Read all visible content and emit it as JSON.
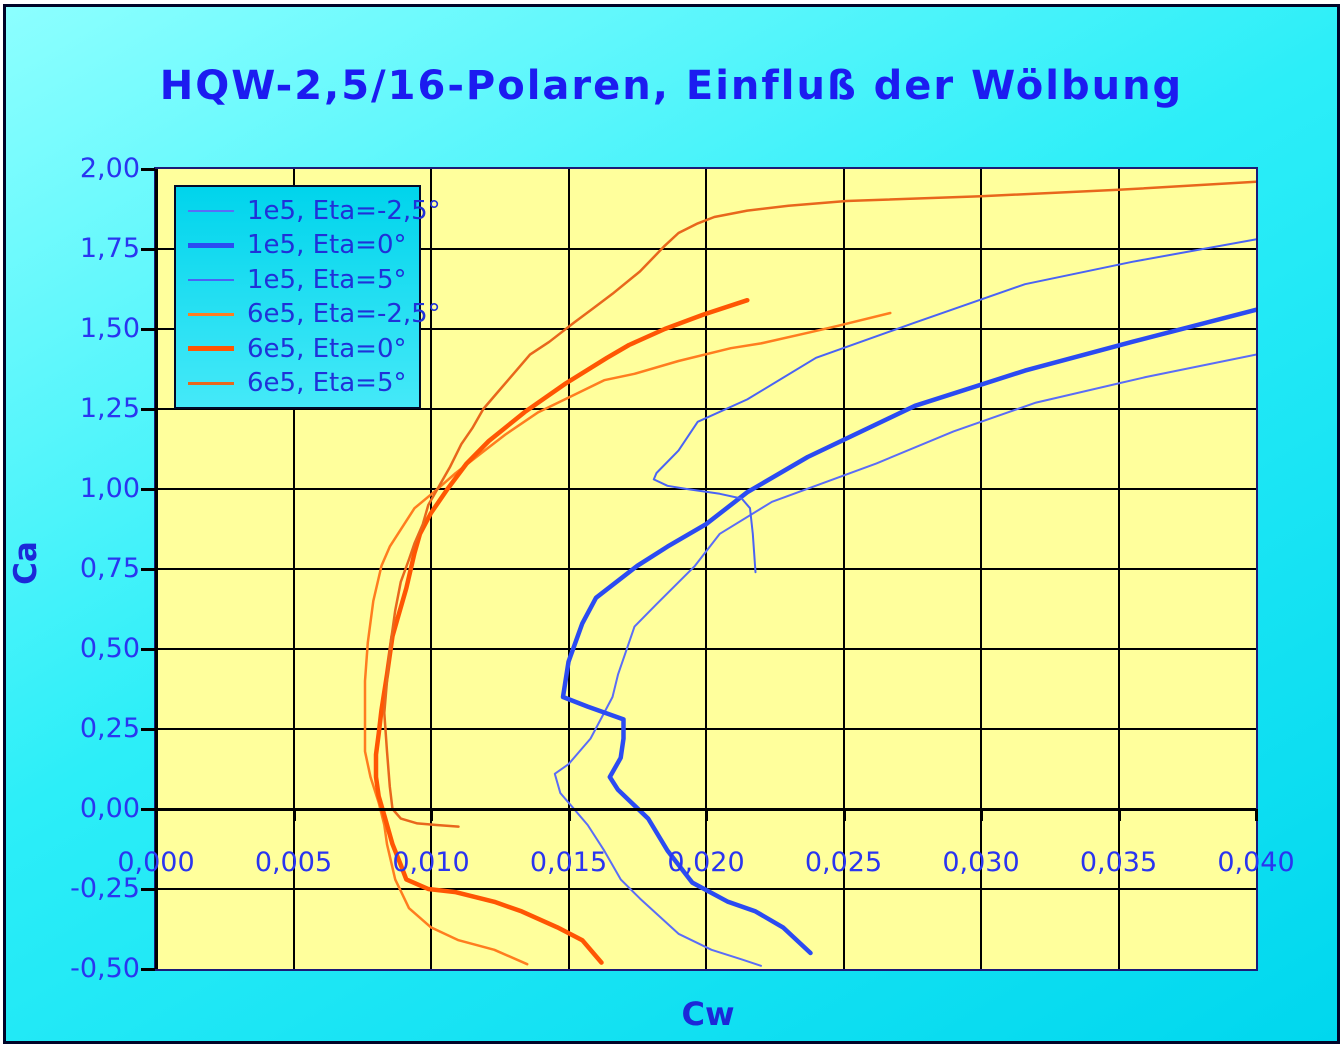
{
  "title": "HQW-2,5/16-Polaren, Einfluß der Wölbung",
  "chart_data": {
    "type": "line",
    "title": "HQW-2,5/16-Polaren, Einfluß der Wölbung",
    "xlabel": "Cw",
    "ylabel": "Ca",
    "xlim": [
      0.0,
      0.04
    ],
    "ylim": [
      -0.5,
      2.0
    ],
    "grid": true,
    "legend_position": "top-left",
    "plot_bg_color": "#ffff9c",
    "x_ticks": [
      {
        "value": 0.0,
        "label": "0,000"
      },
      {
        "value": 0.005,
        "label": "0,005"
      },
      {
        "value": 0.01,
        "label": "0,010"
      },
      {
        "value": 0.015,
        "label": "0,015"
      },
      {
        "value": 0.02,
        "label": "0,020"
      },
      {
        "value": 0.025,
        "label": "0,025"
      },
      {
        "value": 0.03,
        "label": "0,030"
      },
      {
        "value": 0.035,
        "label": "0,035"
      },
      {
        "value": 0.04,
        "label": "0,040"
      }
    ],
    "y_ticks": [
      {
        "value": 2.0,
        "label": "2,00"
      },
      {
        "value": 1.75,
        "label": "1,75"
      },
      {
        "value": 1.5,
        "label": "1,50"
      },
      {
        "value": 1.25,
        "label": "1,25"
      },
      {
        "value": 1.0,
        "label": "1,00"
      },
      {
        "value": 0.75,
        "label": "0,75"
      },
      {
        "value": 0.5,
        "label": "0,50"
      },
      {
        "value": 0.25,
        "label": "0,25"
      },
      {
        "value": 0.0,
        "label": "0,00"
      },
      {
        "value": -0.25,
        "label": "-0,25"
      },
      {
        "value": -0.5,
        "label": "-0,50"
      }
    ],
    "series": [
      {
        "name": "1e5, Eta=-2,5°",
        "color": "#5a6cf8",
        "width": 2,
        "points": [
          [
            0.04,
            1.42
          ],
          [
            0.036,
            1.35
          ],
          [
            0.032,
            1.27
          ],
          [
            0.029,
            1.18
          ],
          [
            0.0262,
            1.08
          ],
          [
            0.0224,
            0.96
          ],
          [
            0.0205,
            0.86
          ],
          [
            0.0196,
            0.76
          ],
          [
            0.0182,
            0.64
          ],
          [
            0.0174,
            0.57
          ],
          [
            0.0168,
            0.42
          ],
          [
            0.0166,
            0.35
          ],
          [
            0.0158,
            0.22
          ],
          [
            0.015,
            0.14
          ],
          [
            0.0145,
            0.11
          ],
          [
            0.0147,
            0.05
          ],
          [
            0.0151,
            0.01
          ],
          [
            0.0157,
            -0.05
          ],
          [
            0.0163,
            -0.13
          ],
          [
            0.0169,
            -0.22
          ],
          [
            0.0176,
            -0.28
          ],
          [
            0.019,
            -0.39
          ],
          [
            0.0202,
            -0.44
          ],
          [
            0.0213,
            -0.47
          ],
          [
            0.022,
            -0.49
          ]
        ]
      },
      {
        "name": "1e5, Eta=0°",
        "color": "#2b4bf2",
        "width": 4.5,
        "points": [
          [
            0.04,
            1.56
          ],
          [
            0.0355,
            1.46
          ],
          [
            0.0316,
            1.37
          ],
          [
            0.0276,
            1.26
          ],
          [
            0.0237,
            1.1
          ],
          [
            0.0215,
            0.99
          ],
          [
            0.02,
            0.89
          ],
          [
            0.0186,
            0.82
          ],
          [
            0.0175,
            0.76
          ],
          [
            0.016,
            0.66
          ],
          [
            0.0155,
            0.58
          ],
          [
            0.015,
            0.46
          ],
          [
            0.0148,
            0.35
          ],
          [
            0.0157,
            0.32
          ],
          [
            0.017,
            0.28
          ],
          [
            0.017,
            0.22
          ],
          [
            0.0169,
            0.16
          ],
          [
            0.0165,
            0.1
          ],
          [
            0.0168,
            0.06
          ],
          [
            0.0179,
            -0.03
          ],
          [
            0.0186,
            -0.13
          ],
          [
            0.0195,
            -0.23
          ],
          [
            0.0208,
            -0.29
          ],
          [
            0.0218,
            -0.32
          ],
          [
            0.0228,
            -0.37
          ],
          [
            0.0238,
            -0.45
          ]
        ]
      },
      {
        "name": "1e5, Eta=5°",
        "color": "#4a63f5",
        "width": 2,
        "points": [
          [
            0.04,
            1.78
          ],
          [
            0.0355,
            1.71
          ],
          [
            0.0316,
            1.64
          ],
          [
            0.0276,
            1.52
          ],
          [
            0.024,
            1.41
          ],
          [
            0.0215,
            1.28
          ],
          [
            0.0197,
            1.21
          ],
          [
            0.019,
            1.12
          ],
          [
            0.0182,
            1.05
          ],
          [
            0.0181,
            1.03
          ],
          [
            0.0186,
            1.01
          ],
          [
            0.0193,
            1.0
          ],
          [
            0.0205,
            0.985
          ],
          [
            0.0213,
            0.97
          ],
          [
            0.0216,
            0.94
          ],
          [
            0.0217,
            0.86
          ],
          [
            0.0218,
            0.74
          ]
        ]
      },
      {
        "name": "6e5, Eta=-2,5°",
        "color": "#ff7d1f",
        "width": 2.5,
        "points": [
          [
            0.0267,
            1.55
          ],
          [
            0.0248,
            1.51
          ],
          [
            0.0238,
            1.49
          ],
          [
            0.022,
            1.455
          ],
          [
            0.0209,
            1.44
          ],
          [
            0.019,
            1.4
          ],
          [
            0.0174,
            1.36
          ],
          [
            0.0163,
            1.34
          ],
          [
            0.0151,
            1.29
          ],
          [
            0.0139,
            1.24
          ],
          [
            0.0127,
            1.17
          ],
          [
            0.0118,
            1.11
          ],
          [
            0.0109,
            1.05
          ],
          [
            0.0101,
            0.99
          ],
          [
            0.0094,
            0.94
          ],
          [
            0.0088,
            0.86
          ],
          [
            0.0085,
            0.82
          ],
          [
            0.0082,
            0.76
          ],
          [
            0.0079,
            0.65
          ],
          [
            0.0077,
            0.52
          ],
          [
            0.0076,
            0.4
          ],
          [
            0.0076,
            0.3
          ],
          [
            0.0076,
            0.18
          ],
          [
            0.0078,
            0.1
          ],
          [
            0.0081,
            0.02
          ],
          [
            0.0083,
            -0.05
          ],
          [
            0.0084,
            -0.11
          ],
          [
            0.0087,
            -0.22
          ],
          [
            0.0092,
            -0.31
          ],
          [
            0.01,
            -0.37
          ],
          [
            0.011,
            -0.41
          ],
          [
            0.0123,
            -0.44
          ],
          [
            0.0135,
            -0.485
          ]
        ]
      },
      {
        "name": "6e5, Eta=0°",
        "color": "#ff5603",
        "width": 4.5,
        "points": [
          [
            0.0215,
            1.59
          ],
          [
            0.0199,
            1.545
          ],
          [
            0.0185,
            1.5
          ],
          [
            0.0172,
            1.45
          ],
          [
            0.0164,
            1.41
          ],
          [
            0.0149,
            1.33
          ],
          [
            0.0134,
            1.24
          ],
          [
            0.0121,
            1.15
          ],
          [
            0.0113,
            1.08
          ],
          [
            0.0106,
            1.0
          ],
          [
            0.01,
            0.925
          ],
          [
            0.0096,
            0.86
          ],
          [
            0.0094,
            0.8
          ],
          [
            0.0091,
            0.69
          ],
          [
            0.0088,
            0.6
          ],
          [
            0.0086,
            0.54
          ],
          [
            0.0084,
            0.42
          ],
          [
            0.0082,
            0.31
          ],
          [
            0.0081,
            0.235
          ],
          [
            0.008,
            0.17
          ],
          [
            0.008,
            0.1
          ],
          [
            0.0081,
            0.04
          ],
          [
            0.0083,
            -0.02
          ],
          [
            0.0086,
            -0.11
          ],
          [
            0.0089,
            -0.175
          ],
          [
            0.0091,
            -0.22
          ],
          [
            0.0099,
            -0.25
          ],
          [
            0.0109,
            -0.26
          ],
          [
            0.0123,
            -0.29
          ],
          [
            0.0133,
            -0.32
          ],
          [
            0.0146,
            -0.37
          ],
          [
            0.0155,
            -0.41
          ],
          [
            0.0162,
            -0.48
          ]
        ]
      },
      {
        "name": "6e5, Eta=5°",
        "color": "#e8671c",
        "width": 2.5,
        "points": [
          [
            0.04,
            1.96
          ],
          [
            0.035,
            1.935
          ],
          [
            0.03,
            1.915
          ],
          [
            0.0251,
            1.9
          ],
          [
            0.023,
            1.885
          ],
          [
            0.0215,
            1.87
          ],
          [
            0.0203,
            1.85
          ],
          [
            0.0197,
            1.83
          ],
          [
            0.019,
            1.8
          ],
          [
            0.0185,
            1.76
          ],
          [
            0.0176,
            1.68
          ],
          [
            0.0166,
            1.61
          ],
          [
            0.0159,
            1.565
          ],
          [
            0.0152,
            1.52
          ],
          [
            0.0143,
            1.46
          ],
          [
            0.0136,
            1.42
          ],
          [
            0.013,
            1.36
          ],
          [
            0.0124,
            1.3
          ],
          [
            0.0119,
            1.25
          ],
          [
            0.0115,
            1.19
          ],
          [
            0.0111,
            1.14
          ],
          [
            0.0107,
            1.07
          ],
          [
            0.0103,
            1.01
          ],
          [
            0.0099,
            0.95
          ],
          [
            0.0097,
            0.89
          ],
          [
            0.0094,
            0.83
          ],
          [
            0.0092,
            0.78
          ],
          [
            0.0089,
            0.71
          ],
          [
            0.0087,
            0.62
          ],
          [
            0.0085,
            0.5
          ],
          [
            0.0084,
            0.4
          ],
          [
            0.0083,
            0.3
          ],
          [
            0.0084,
            0.18
          ],
          [
            0.0085,
            0.07
          ],
          [
            0.0086,
            0.0
          ],
          [
            0.0089,
            -0.03
          ],
          [
            0.0095,
            -0.045
          ],
          [
            0.0102,
            -0.05
          ],
          [
            0.011,
            -0.055
          ]
        ]
      }
    ]
  }
}
